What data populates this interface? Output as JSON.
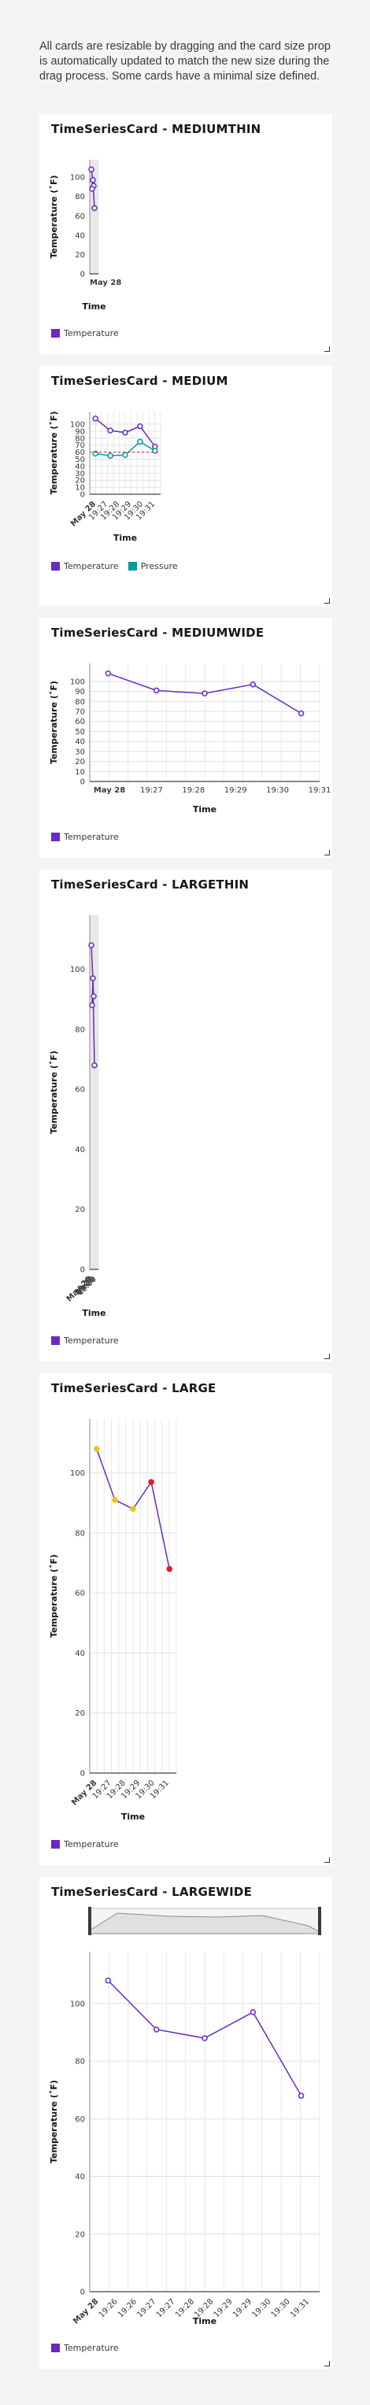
{
  "intro": "All cards are resizable by dragging and the card size prop is automatically updated to match the new size during the drag process. Some cards have a minimal size defined.",
  "series_defs": {
    "temperature": {
      "name": "Temperature",
      "color": "#6929c4"
    },
    "pressure": {
      "name": "Pressure",
      "color": "#1192e8"
    }
  },
  "chart_data": [
    {
      "id": "mediumthin",
      "title": "TimeSeriesCard - MEDIUMTHIN",
      "type": "line",
      "xlabel": "Time",
      "ylabel": "Temperature (˚F)",
      "ylim": [
        0,
        100
      ],
      "yticks": [
        0,
        20,
        40,
        60,
        80,
        100
      ],
      "xticks": [
        "May 28"
      ],
      "series": [
        {
          "name": "Temperature",
          "values": [
            108,
            91,
            88,
            97,
            68
          ]
        }
      ],
      "legend": [
        "Temperature"
      ]
    },
    {
      "id": "medium",
      "title": "TimeSeriesCard - MEDIUM",
      "type": "line",
      "xlabel": "Time",
      "ylabel": "Temperature (˚F)",
      "ylim": [
        0,
        100
      ],
      "yticks": [
        0,
        10,
        20,
        30,
        40,
        50,
        60,
        70,
        80,
        90,
        100
      ],
      "xticks": [
        "May 28",
        "19:27",
        "19:28",
        "19:29",
        "19:30",
        "19:31"
      ],
      "series": [
        {
          "name": "Temperature",
          "values": [
            108,
            91,
            88,
            97,
            68
          ]
        },
        {
          "name": "Pressure",
          "values": [
            58,
            55,
            56,
            75,
            62
          ]
        }
      ],
      "legend": [
        "Temperature",
        "Pressure"
      ]
    },
    {
      "id": "mediumwide",
      "title": "TimeSeriesCard - MEDIUMWIDE",
      "type": "line",
      "xlabel": "Time",
      "ylabel": "Temperature (˚F)",
      "ylim": [
        0,
        100
      ],
      "yticks": [
        0,
        10,
        20,
        30,
        40,
        50,
        60,
        70,
        80,
        90,
        100
      ],
      "xticks": [
        "May 28",
        "19:27",
        "19:28",
        "19:29",
        "19:30",
        "19:31"
      ],
      "series": [
        {
          "name": "Temperature",
          "values": [
            108,
            91,
            88,
            97,
            68
          ]
        }
      ],
      "legend": [
        "Temperature"
      ]
    },
    {
      "id": "largethin",
      "title": "TimeSeriesCard - LARGETHIN",
      "type": "line",
      "xlabel": "Time",
      "ylabel": "Temperature (˚F)",
      "ylim": [
        0,
        100
      ],
      "yticks": [
        0,
        20,
        40,
        60,
        80,
        100
      ],
      "xticks": [
        "May 28",
        "19:27",
        "19:28",
        "19:29",
        "19:30"
      ],
      "series": [
        {
          "name": "Temperature",
          "values": [
            108,
            91,
            88,
            97,
            68
          ]
        }
      ],
      "legend": [
        "Temperature"
      ]
    },
    {
      "id": "large",
      "title": "TimeSeriesCard - LARGE",
      "type": "line",
      "xlabel": "Time",
      "ylabel": "Temperature (˚F)",
      "ylim": [
        0,
        100
      ],
      "yticks": [
        0,
        20,
        40,
        60,
        80,
        100
      ],
      "xticks": [
        "May 28",
        "19:27",
        "19:28",
        "19:29",
        "19:30",
        "19:31"
      ],
      "series": [
        {
          "name": "Temperature",
          "values": [
            108,
            91,
            88,
            97,
            68
          ]
        }
      ],
      "point_colors": [
        "#f1c21b",
        "#f1c21b",
        "#f1c21b",
        "#da1e28",
        "#da1e28"
      ],
      "legend": [
        "Temperature"
      ]
    },
    {
      "id": "largewide",
      "title": "TimeSeriesCard - LARGEWIDE",
      "type": "line",
      "xlabel": "Time",
      "ylabel": "Temperature (˚F)",
      "ylim": [
        0,
        100
      ],
      "yticks": [
        0,
        20,
        40,
        60,
        80,
        100
      ],
      "xticks": [
        "May 28",
        "19:26",
        "19:26",
        "19:27",
        "19:27",
        "19:28",
        "19:28",
        "19:29",
        "19:29",
        "19:30",
        "19:30",
        "19:31"
      ],
      "series": [
        {
          "name": "Temperature",
          "values": [
            108,
            91,
            88,
            97,
            68
          ]
        }
      ],
      "legend": [
        "Temperature"
      ],
      "zoom_bar": true
    }
  ]
}
